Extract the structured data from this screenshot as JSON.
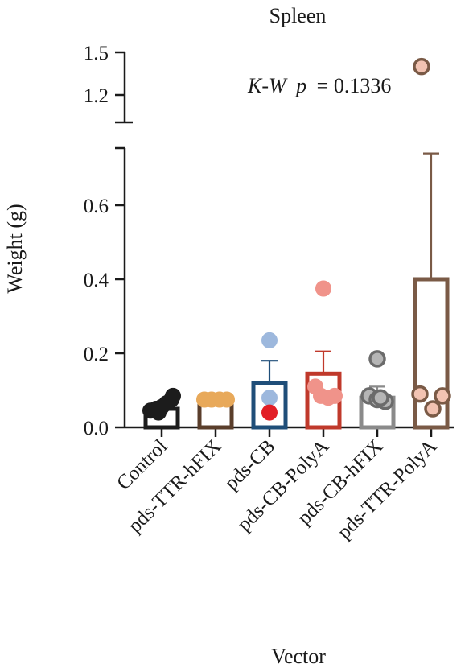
{
  "chart_data": {
    "type": "bar",
    "title": "Spleen",
    "xlabel": "Vector",
    "ylabel": "Weight (g)",
    "annotation": {
      "stat": "K-W",
      "p_label": "p",
      "p_value": "= 0.1336"
    },
    "y_axis": {
      "broken": true,
      "lower_segment": {
        "range": [
          0.0,
          0.75
        ],
        "ticks": [
          "0.0",
          "0.2",
          "0.4",
          "0.6"
        ]
      },
      "upper_segment": {
        "range": [
          1.05,
          1.5
        ],
        "ticks": [
          "1.2",
          "1.5"
        ]
      }
    },
    "categories": [
      "Control",
      "pds-TTR-hFIX",
      "pds-CB",
      "pds-CB-PolyA",
      "pds-CB-hFIX",
      "pds-TTR-PolyA"
    ],
    "means": [
      0.05,
      0.075,
      0.12,
      0.145,
      0.08,
      0.4
    ],
    "sem": [
      0.008,
      0.003,
      0.06,
      0.06,
      0.03,
      0.34
    ],
    "points": [
      [
        0.045,
        0.05,
        0.055,
        0.065,
        0.075,
        0.085,
        0.04
      ],
      [
        0.075,
        0.075,
        0.075,
        0.075
      ],
      [
        0.235,
        0.08,
        0.04
      ],
      [
        0.375,
        0.11,
        0.085,
        0.08,
        0.085
      ],
      [
        0.185,
        0.085,
        0.075,
        0.07,
        0.08
      ],
      [
        1.4,
        0.09,
        0.085,
        0.05
      ]
    ],
    "colors": {
      "bar_edges": [
        "#1c1c1c",
        "#5a3e2b",
        "#1f4e79",
        "#c0392b",
        "#8a8a8a",
        "#7a5a46"
      ],
      "point_fill": [
        "#1c1c1c",
        "#e8a95a",
        "#9db8dd",
        "#f0938a",
        "#b5b5b5",
        "#f2c3b2"
      ],
      "point_edge": [
        "#1c1c1c",
        "#e8a95a",
        "#9db8dd",
        "#f0938a",
        "#6b6b6b",
        "#7a5a46"
      ],
      "highlight_point": "#e21e26",
      "axis": "#1a1a1a"
    }
  }
}
